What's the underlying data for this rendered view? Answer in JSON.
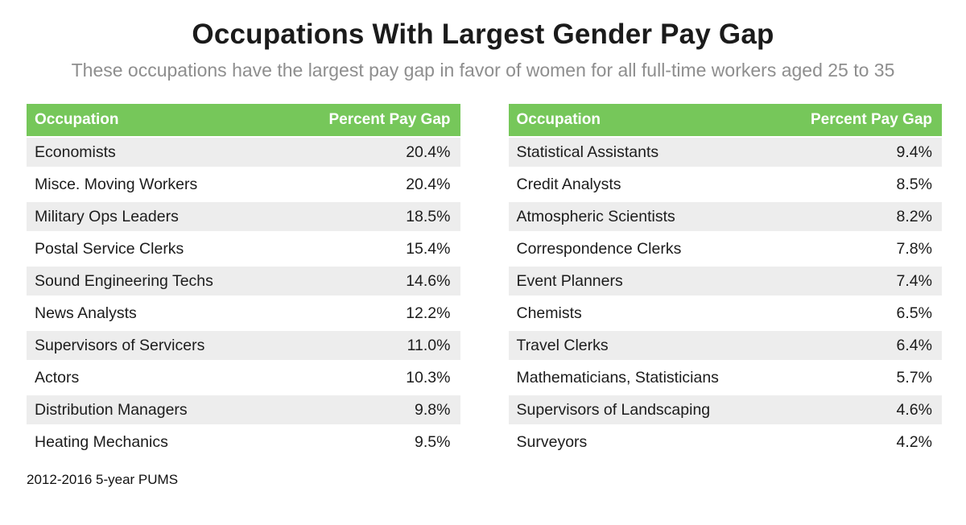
{
  "header": {
    "title": "Occupations With Largest Gender Pay Gap",
    "subtitle": "These occupations have the largest pay gap in favor of women for all full-time workers aged 25 to 35"
  },
  "footer": {
    "source": "2012-2016 5-year PUMS"
  },
  "colors": {
    "header_green": "#76c75a",
    "row_stripe_gray": "#ededed",
    "subtitle_gray": "#8e8e8e",
    "header_text": "#ffffff",
    "body_text": "#1c1c1c"
  },
  "tables": [
    {
      "columns": [
        "Occupation",
        "Percent Pay Gap"
      ],
      "rows": [
        [
          "Economists",
          "20.4%"
        ],
        [
          "Misce. Moving Workers",
          "20.4%"
        ],
        [
          "Military Ops Leaders",
          "18.5%"
        ],
        [
          "Postal Service Clerks",
          "15.4%"
        ],
        [
          "Sound Engineering Techs",
          "14.6%"
        ],
        [
          "News Analysts",
          "12.2%"
        ],
        [
          "Supervisors of Servicers",
          "11.0%"
        ],
        [
          "Actors",
          "10.3%"
        ],
        [
          "Distribution Managers",
          "9.8%"
        ],
        [
          "Heating Mechanics",
          "9.5%"
        ]
      ]
    },
    {
      "columns": [
        "Occupation",
        "Percent Pay Gap"
      ],
      "rows": [
        [
          "Statistical Assistants",
          "9.4%"
        ],
        [
          "Credit Analysts",
          "8.5%"
        ],
        [
          "Atmospheric Scientists",
          "8.2%"
        ],
        [
          "Correspondence Clerks",
          "7.8%"
        ],
        [
          "Event Planners",
          "7.4%"
        ],
        [
          "Chemists",
          "6.5%"
        ],
        [
          "Travel Clerks",
          "6.4%"
        ],
        [
          "Mathematicians, Statisticians",
          "5.7%"
        ],
        [
          "Supervisors of Landscaping",
          "4.6%"
        ],
        [
          "Surveyors",
          "4.2%"
        ]
      ]
    }
  ],
  "chart_data": {
    "type": "table",
    "title": "Occupations With Largest Gender Pay Gap",
    "subtitle": "These occupations have the largest pay gap in favor of women for all full-time workers aged 25 to 35",
    "source": "2012-2016 5-year PUMS",
    "columns": [
      "Occupation",
      "Percent Pay Gap"
    ],
    "series": [
      {
        "name": "left-table",
        "categories": [
          "Economists",
          "Misce. Moving Workers",
          "Military Ops Leaders",
          "Postal Service Clerks",
          "Sound Engineering Techs",
          "News Analysts",
          "Supervisors of Servicers",
          "Actors",
          "Distribution Managers",
          "Heating Mechanics"
        ],
        "values": [
          20.4,
          20.4,
          18.5,
          15.4,
          14.6,
          12.2,
          11.0,
          10.3,
          9.8,
          9.5
        ]
      },
      {
        "name": "right-table",
        "categories": [
          "Statistical Assistants",
          "Credit Analysts",
          "Atmospheric Scientists",
          "Correspondence Clerks",
          "Event Planners",
          "Chemists",
          "Travel Clerks",
          "Mathematicians, Statisticians",
          "Supervisors of Landscaping",
          "Surveyors"
        ],
        "values": [
          9.4,
          8.5,
          8.2,
          7.8,
          7.4,
          6.5,
          6.4,
          5.7,
          4.6,
          4.2
        ]
      }
    ],
    "layout": {
      "legend": false,
      "grid": false,
      "stripe_alternating_rows": true,
      "value_unit": "percent"
    }
  }
}
